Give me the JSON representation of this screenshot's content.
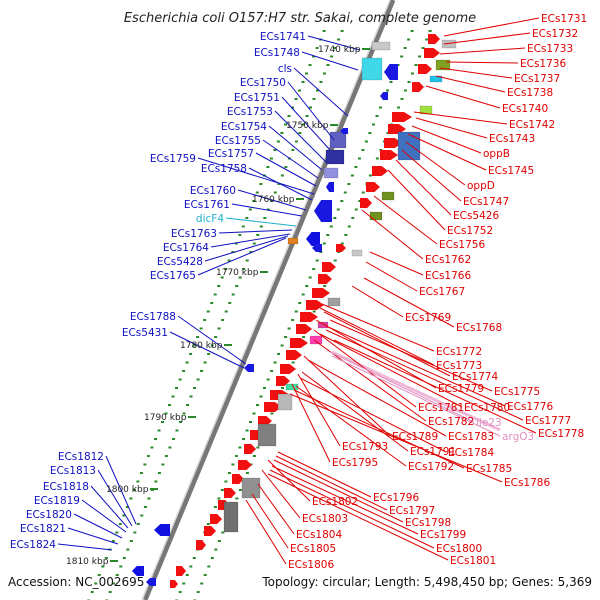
{
  "title": "Escherichia coli O157:H7 str. Sakai, complete genome",
  "accession": "Accession: NC_002695",
  "topology": "Topology: circular; Length: 5,498,450 bp; Genes: 5,369",
  "colors": {
    "backbone": "#777777",
    "forward_label": "#e00000",
    "reverse_label": "#1010c0",
    "pseudo_label": "#e090c0",
    "rna_label": "#20b0d0",
    "tick": "#2a8a2a"
  },
  "kbp_ticks": [
    "1740 kbp",
    "1750 kbp",
    "1760 kbp",
    "1770 kbp",
    "1780 kbp",
    "1790 kbp",
    "1800 kbp",
    "1810 kbp"
  ],
  "left_labels": [
    {
      "text": "ECs1741",
      "kind": "reverse"
    },
    {
      "text": "ECs1748",
      "kind": "reverse"
    },
    {
      "text": "cls",
      "kind": "reverse"
    },
    {
      "text": "ECs1750",
      "kind": "reverse"
    },
    {
      "text": "ECs1751",
      "kind": "reverse"
    },
    {
      "text": "ECs1753",
      "kind": "reverse"
    },
    {
      "text": "ECs1754",
      "kind": "reverse"
    },
    {
      "text": "ECs1755",
      "kind": "reverse"
    },
    {
      "text": "ECs1757",
      "kind": "reverse"
    },
    {
      "text": "ECs1759",
      "kind": "reverse"
    },
    {
      "text": "ECs1758",
      "kind": "reverse"
    },
    {
      "text": "ECs1760",
      "kind": "reverse"
    },
    {
      "text": "ECs1761",
      "kind": "reverse"
    },
    {
      "text": "dicF4",
      "kind": "rna"
    },
    {
      "text": "ECs1763",
      "kind": "reverse"
    },
    {
      "text": "ECs1764",
      "kind": "reverse"
    },
    {
      "text": "ECs5428",
      "kind": "reverse"
    },
    {
      "text": "ECs1765",
      "kind": "reverse"
    },
    {
      "text": "ECs1788",
      "kind": "reverse"
    },
    {
      "text": "ECs5431",
      "kind": "reverse"
    },
    {
      "text": "ECs1812",
      "kind": "reverse"
    },
    {
      "text": "ECs1813",
      "kind": "reverse"
    },
    {
      "text": "ECs1818",
      "kind": "reverse"
    },
    {
      "text": "ECs1819",
      "kind": "reverse"
    },
    {
      "text": "ECs1820",
      "kind": "reverse"
    },
    {
      "text": "ECs1821",
      "kind": "reverse"
    },
    {
      "text": "ECs1824",
      "kind": "reverse"
    }
  ],
  "right_labels": [
    {
      "text": "ECs1731",
      "kind": "forward"
    },
    {
      "text": "ECs1732",
      "kind": "forward"
    },
    {
      "text": "ECs1733",
      "kind": "forward"
    },
    {
      "text": "ECs1736",
      "kind": "forward"
    },
    {
      "text": "ECs1737",
      "kind": "forward"
    },
    {
      "text": "ECs1738",
      "kind": "forward"
    },
    {
      "text": "ECs1740",
      "kind": "forward"
    },
    {
      "text": "ECs1742",
      "kind": "forward"
    },
    {
      "text": "ECs1743",
      "kind": "forward"
    },
    {
      "text": "oppB",
      "kind": "forward"
    },
    {
      "text": "ECs1745",
      "kind": "forward"
    },
    {
      "text": "oppD",
      "kind": "forward"
    },
    {
      "text": "ECs1747",
      "kind": "forward"
    },
    {
      "text": "ECs5426",
      "kind": "forward"
    },
    {
      "text": "ECs1752",
      "kind": "forward"
    },
    {
      "text": "ECs1756",
      "kind": "forward"
    },
    {
      "text": "ECs1762",
      "kind": "forward"
    },
    {
      "text": "ECs1766",
      "kind": "forward"
    },
    {
      "text": "ECs1767",
      "kind": "forward"
    },
    {
      "text": "ECs1769",
      "kind": "forward"
    },
    {
      "text": "ECs1768",
      "kind": "forward"
    },
    {
      "text": "ECs1772",
      "kind": "forward"
    },
    {
      "text": "ECs1773",
      "kind": "forward"
    },
    {
      "text": "ECs1774",
      "kind": "forward"
    },
    {
      "text": "ECs1779",
      "kind": "forward"
    },
    {
      "text": "ECs1775",
      "kind": "forward"
    },
    {
      "text": "ECs1776",
      "kind": "forward"
    },
    {
      "text": "ECs1781",
      "kind": "forward"
    },
    {
      "text": "ECs1780",
      "kind": "forward"
    },
    {
      "text": "ECs1777",
      "kind": "forward"
    },
    {
      "text": "ECs1782",
      "kind": "forward"
    },
    {
      "text": "ile23",
      "kind": "pseudo"
    },
    {
      "text": "ECs1778",
      "kind": "forward"
    },
    {
      "text": "ECs1789",
      "kind": "forward"
    },
    {
      "text": "ECs1783",
      "kind": "forward"
    },
    {
      "text": "argO3",
      "kind": "pseudo"
    },
    {
      "text": "ECs1793",
      "kind": "forward"
    },
    {
      "text": "ECs1791",
      "kind": "forward"
    },
    {
      "text": "ECs1784",
      "kind": "forward"
    },
    {
      "text": "ECs1795",
      "kind": "forward"
    },
    {
      "text": "ECs1792",
      "kind": "forward"
    },
    {
      "text": "ECs1785",
      "kind": "forward"
    },
    {
      "text": "ECs1786",
      "kind": "forward"
    },
    {
      "text": "ECs1796",
      "kind": "forward"
    },
    {
      "text": "ECs1802",
      "kind": "forward"
    },
    {
      "text": "ECs1797",
      "kind": "forward"
    },
    {
      "text": "ECs1803",
      "kind": "forward"
    },
    {
      "text": "ECs1798",
      "kind": "forward"
    },
    {
      "text": "ECs1804",
      "kind": "forward"
    },
    {
      "text": "ECs1799",
      "kind": "forward"
    },
    {
      "text": "ECs1805",
      "kind": "forward"
    },
    {
      "text": "ECs1800",
      "kind": "forward"
    },
    {
      "text": "ECs1806",
      "kind": "forward"
    },
    {
      "text": "ECs1801",
      "kind": "forward"
    }
  ]
}
